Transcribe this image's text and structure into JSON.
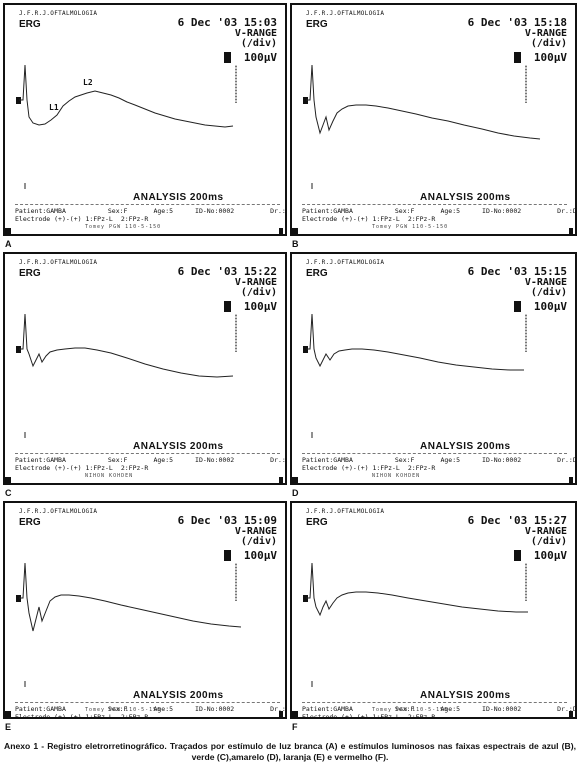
{
  "panels": [
    {
      "label": "A",
      "hospital": "J.F.R.J.OFTALMOLOGIA",
      "test": "ERG",
      "date": "6 Dec '03 15:03",
      "vrange": "V-RANGE",
      "per_div": "(/div)",
      "voltage": "100µV",
      "analysis": "ANALYSIS 200ms",
      "patient": "Patient:GAMBA",
      "sex": "Sex:F",
      "age": "Age:5",
      "id": "ID-No:0002",
      "doctor": "Dr.:DANIELA",
      "electrode": "Electrode (+)-(+) 1:FPz-L",
      "channel": "2:FPz-R",
      "footer": "Tomey  PGW 110-5-150",
      "wave_labels": [
        "L1",
        "L2"
      ]
    },
    {
      "label": "B",
      "hospital": "J.F.R.J.OFTALMOLOGIA",
      "test": "ERG",
      "date": "6 Dec '03 15:18",
      "vrange": "V-RANGE",
      "per_div": "(/div)",
      "voltage": "100µV",
      "analysis": "ANALYSIS 200ms",
      "patient": "Patient:GAMBA",
      "sex": "Sex:F",
      "age": "Age:5",
      "id": "ID-No:0002",
      "doctor": "Dr.:DANIELA",
      "electrode": "Electrode (+)-(+) 1:FPz-L",
      "channel": "2:FPz-R",
      "footer": "Tomey  PGW 110-5-150"
    },
    {
      "label": "C",
      "hospital": "J.F.R.J.OFTALMOLOGIA",
      "test": "ERG",
      "date": "6 Dec '03 15:22",
      "vrange": "V-RANGE",
      "per_div": "(/div)",
      "voltage": "100µV",
      "analysis": "ANALYSIS 200ms",
      "patient": "Patient:GAMBA",
      "sex": "Sex:F",
      "age": "Age:5",
      "id": "ID-No:0002",
      "doctor": "Dr.:DANIELA",
      "electrode": "Electrode (+)-(+) 1:FPz-L",
      "channel": "2:FPz-R",
      "footer": "NIHON KOHDEN"
    },
    {
      "label": "D",
      "hospital": "J.F.R.J.OFTALMOLOGIA",
      "test": "ERG",
      "date": "6 Dec '03 15:15",
      "vrange": "V-RANGE",
      "per_div": "(/div)",
      "voltage": "100µV",
      "analysis": "ANALYSIS 200ms",
      "patient": "Patient:GAMBA",
      "sex": "Sex:F",
      "age": "Age:5",
      "id": "ID-No:0002",
      "doctor": "Dr.:DANIELA",
      "electrode": "Electrode (+)-(+) 1:FPz-L",
      "channel": "2:FPz-R",
      "footer": "NIHON KOHDEN"
    },
    {
      "label": "E",
      "hospital": "J.F.R.J.OFTALMOLOGIA",
      "test": "ERG",
      "date": "6 Dec '03 15:09",
      "vrange": "V-RANGE",
      "per_div": "(/div)",
      "voltage": "100µV",
      "analysis": "ANALYSIS 200ms",
      "patient": "Patient:GAMBA",
      "sex": "Sex:F",
      "age": "Age:5",
      "id": "ID-No:0002",
      "doctor": "Dr.:DANIELA",
      "electrode": "Electrode (+)-(+) 1:FPz-L",
      "channel": "2:FPz-R",
      "footer": "Tomey  PGW 110-5-150"
    },
    {
      "label": "F",
      "hospital": "J.F.R.J.OFTALMOLOGIA",
      "test": "ERG",
      "date": "6 Dec '03 15:27",
      "vrange": "V-RANGE",
      "per_div": "(/div)",
      "voltage": "100µV",
      "analysis": "ANALYSIS 200ms",
      "patient": "Patient:GAMBA",
      "sex": "Sex:F",
      "age": "Age:5",
      "id": "ID-No:0002",
      "doctor": "Dr.:DANIELA",
      "electrode": "Electrode (+)-(+) 1:FPz-L",
      "channel": "2:FPz-R",
      "footer": "Tomey  PGW 110-5-150"
    }
  ],
  "caption": "Anexo 1 - Registro eletrorretinográfico. Traçados por estímulo de luz branca (A) e estímulos luminosos nas faixas espectrais de azul (B), verde (C),amarelo (D), laranja (E) e vermelho (F)."
}
